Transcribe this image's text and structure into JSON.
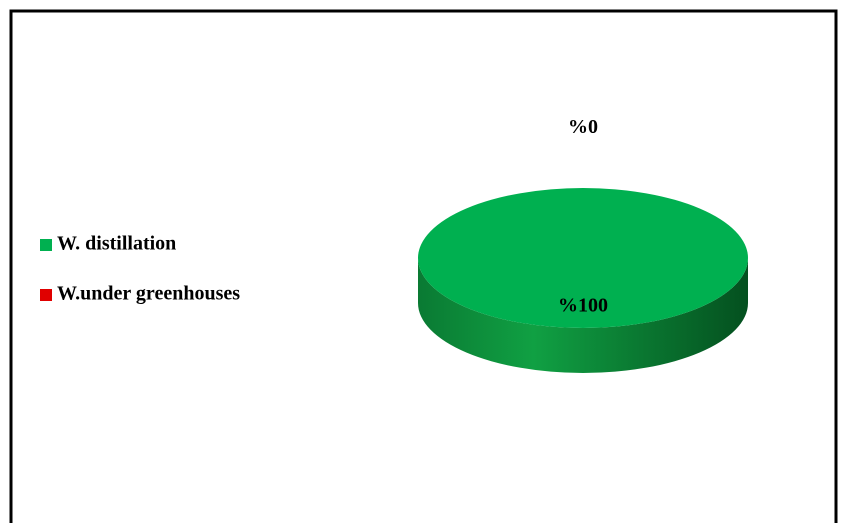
{
  "chart_data": {
    "type": "pie",
    "categories": [
      "W. distillation",
      "W.under greenhouses"
    ],
    "values": [
      100,
      0
    ],
    "value_labels": [
      "%100",
      "%0"
    ],
    "colors": [
      "#00b050",
      "#e00000"
    ],
    "legend": "left"
  }
}
